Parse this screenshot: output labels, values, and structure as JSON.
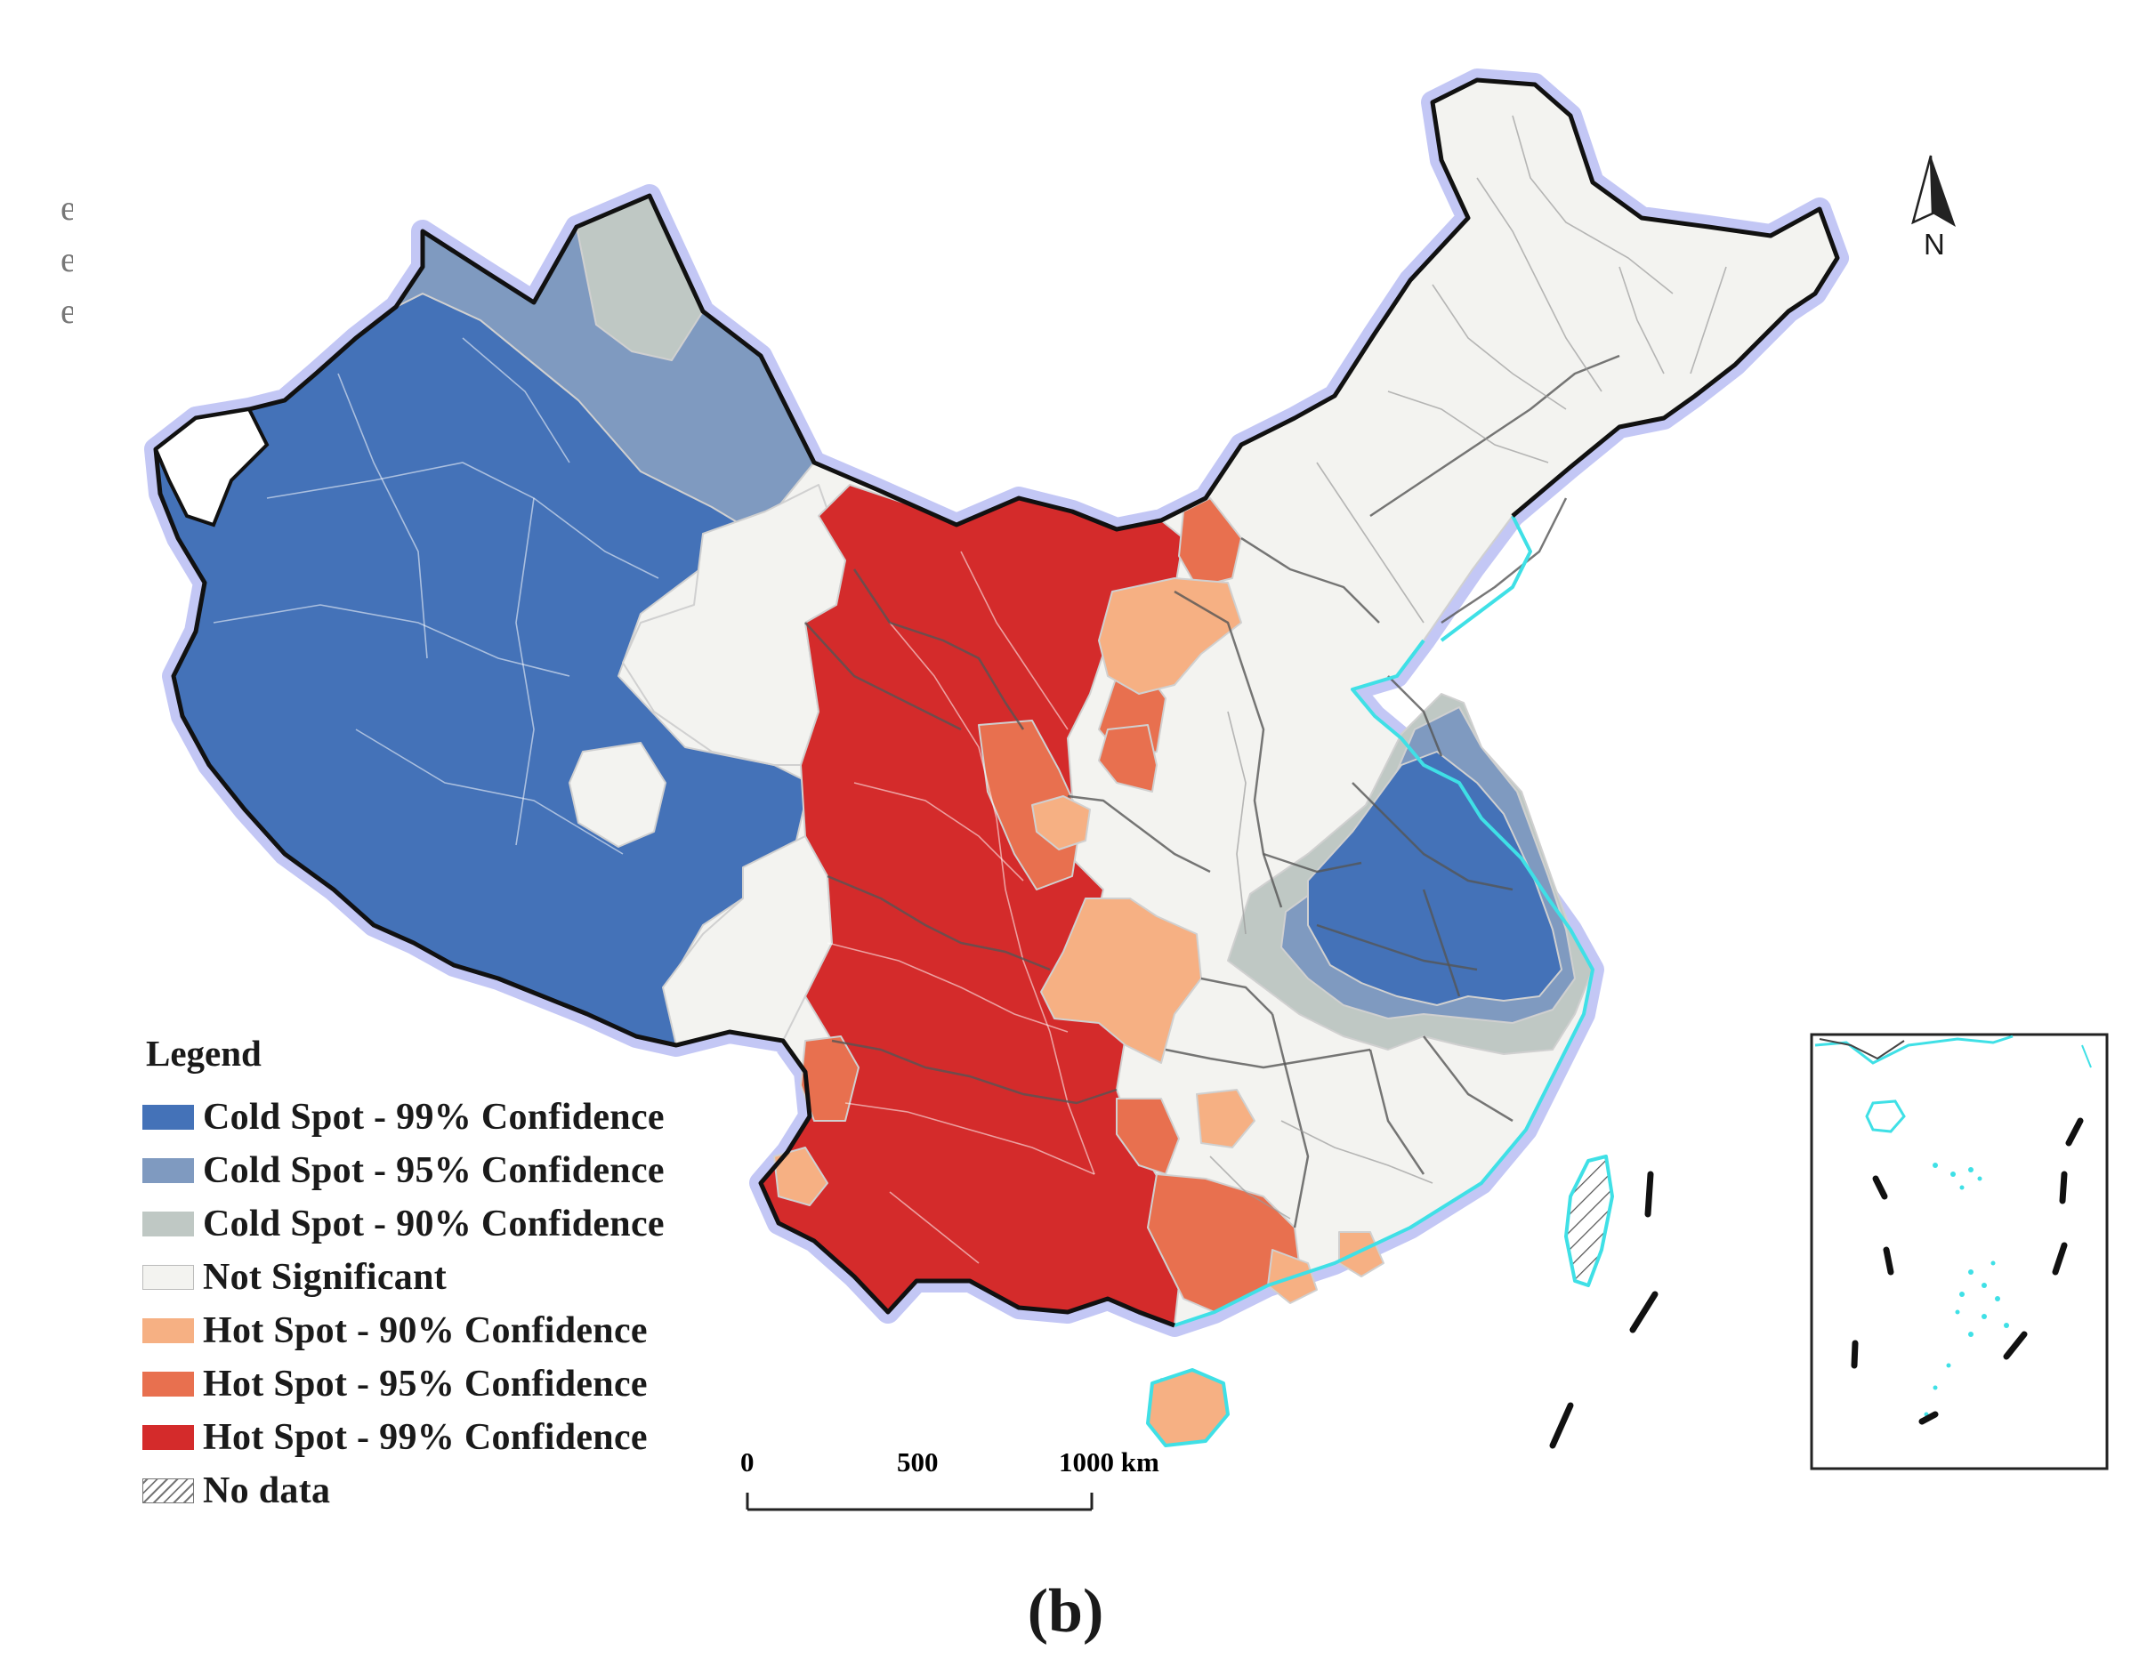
{
  "legend": {
    "title": "Legend",
    "items": [
      {
        "label": "Cold Spot - 99% Confidence",
        "color": "#4472b8"
      },
      {
        "label": "Cold Spot - 95% Confidence",
        "color": "#7f9ac0"
      },
      {
        "label": "Cold Spot - 90% Confidence",
        "color": "#bfc8c4"
      },
      {
        "label": "Not Significant",
        "color": "#f3f3f0"
      },
      {
        "label": "Hot Spot - 90% Confidence",
        "color": "#f6b083"
      },
      {
        "label": "Hot Spot - 95% Confidence",
        "color": "#e8704f"
      },
      {
        "label": "Hot Spot - 99% Confidence",
        "color": "#d42b2b"
      },
      {
        "label": "No data",
        "color": "hatched"
      }
    ]
  },
  "scale_bar": {
    "tick_0": "0",
    "tick_1": "500",
    "tick_2": "1000 km"
  },
  "north_arrow": {
    "label": "N",
    "icon": "north-arrow-icon"
  },
  "panel_label": "(b)",
  "colors": {
    "border": "#111111",
    "border_halo": "#b9bdf3",
    "coastline": "#3fe0e6",
    "admin_lines": "#555555"
  }
}
